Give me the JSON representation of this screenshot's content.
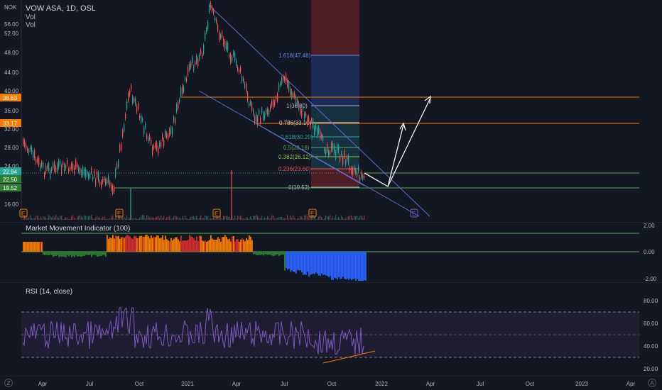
{
  "symbol": {
    "title": "VOW ASA, 1D, OSL",
    "vol1": "Vol",
    "vol2": "Vol",
    "currency": "NOK"
  },
  "price_axis": {
    "ticks": [
      "56.00",
      "52.00",
      "48.00",
      "44.00",
      "40.00",
      "36.00",
      "32.00",
      "28.00",
      "24.00",
      "16.00"
    ],
    "tags": [
      {
        "label": "38.63",
        "color": "#f57c00"
      },
      {
        "label": "33.17",
        "color": "#f57c00"
      },
      {
        "label": "22.94",
        "color": "#26a69a"
      },
      {
        "label": "22.50",
        "color": "#2e7d32"
      },
      {
        "label": "19.52",
        "color": "#2e7d32"
      }
    ]
  },
  "fib_levels": [
    {
      "label": "1.618(47.48)",
      "color": "#5b8def"
    },
    {
      "label": "1(36.80)",
      "color": "#b2b5be"
    },
    {
      "label": "0.786(33.10)",
      "color": "#d1d4dc"
    },
    {
      "label": "0.618(30.20)",
      "color": "#26a69a"
    },
    {
      "label": "0.5(28.16)",
      "color": "#4caf50"
    },
    {
      "label": "0.382(26.12)",
      "color": "#8bc34a"
    },
    {
      "label": "0.236(23.60)",
      "color": "#ef5350"
    },
    {
      "label": "0(19.52)",
      "color": "#b2b5be"
    }
  ],
  "events": [
    "E",
    "E",
    "E",
    "E",
    "E",
    "E"
  ],
  "mmi": {
    "title": "Market Movement Indicator (100)",
    "ticks": [
      "2.00",
      "0.00",
      "-2.00"
    ]
  },
  "rsi": {
    "title": "RSI (14, close)",
    "ticks": [
      "80.00",
      "60.00",
      "40.00",
      "20.00"
    ]
  },
  "time_axis": [
    "Apr",
    "Jul",
    "Oct",
    "2021",
    "Apr",
    "Jul",
    "Oct",
    "2022",
    "Apr",
    "Jul",
    "Oct",
    "2023",
    "Apr"
  ],
  "colors": {
    "up": "#26a69a",
    "down": "#ef5350",
    "orange": "#f57c00",
    "green_line": "#4caf50",
    "blue_line": "#2962ff",
    "rsi": "#7e57c2",
    "background": "#131722"
  },
  "corner_buttons": {
    "left": "Z",
    "right": "A"
  }
}
